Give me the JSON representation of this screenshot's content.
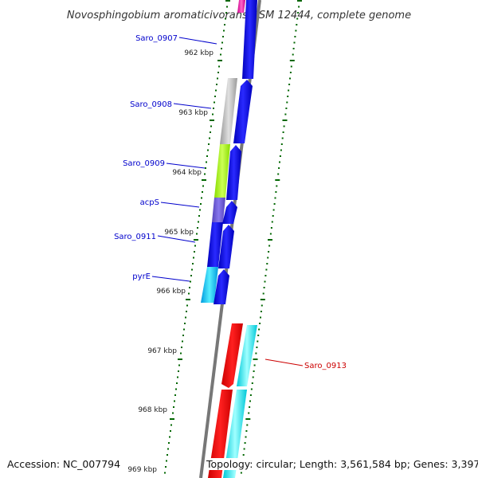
{
  "title": "Novosphingobium aromaticivorans DSM 12444, complete genome",
  "accession": "Accession: NC_007794",
  "summary": "Topology: circular; Length: 3,561,584 bp; Genes: 3,397",
  "colors": {
    "plus_strand": "#0000ee",
    "minus_strand": "#ee0000",
    "tick": "#006600",
    "backbone": "#777777",
    "label_plus": "#0000cc",
    "label_minus": "#cc0000"
  },
  "scale_ticks": [
    {
      "label": "962 kbp"
    },
    {
      "label": "963 kbp"
    },
    {
      "label": "964 kbp"
    },
    {
      "label": "965 kbp"
    },
    {
      "label": "966 kbp"
    },
    {
      "label": "967 kbp"
    },
    {
      "label": "968 kbp"
    },
    {
      "label": "969 kbp"
    }
  ],
  "gene_labels": [
    {
      "text": "Saro_0907",
      "strand": "plus"
    },
    {
      "text": "Saro_0908",
      "strand": "plus"
    },
    {
      "text": "Saro_0909",
      "strand": "plus"
    },
    {
      "text": "acpS",
      "strand": "plus"
    },
    {
      "text": "Saro_0911",
      "strand": "plus"
    },
    {
      "text": "pyrE",
      "strand": "plus"
    },
    {
      "text": "Saro_0913",
      "strand": "minus"
    }
  ]
}
